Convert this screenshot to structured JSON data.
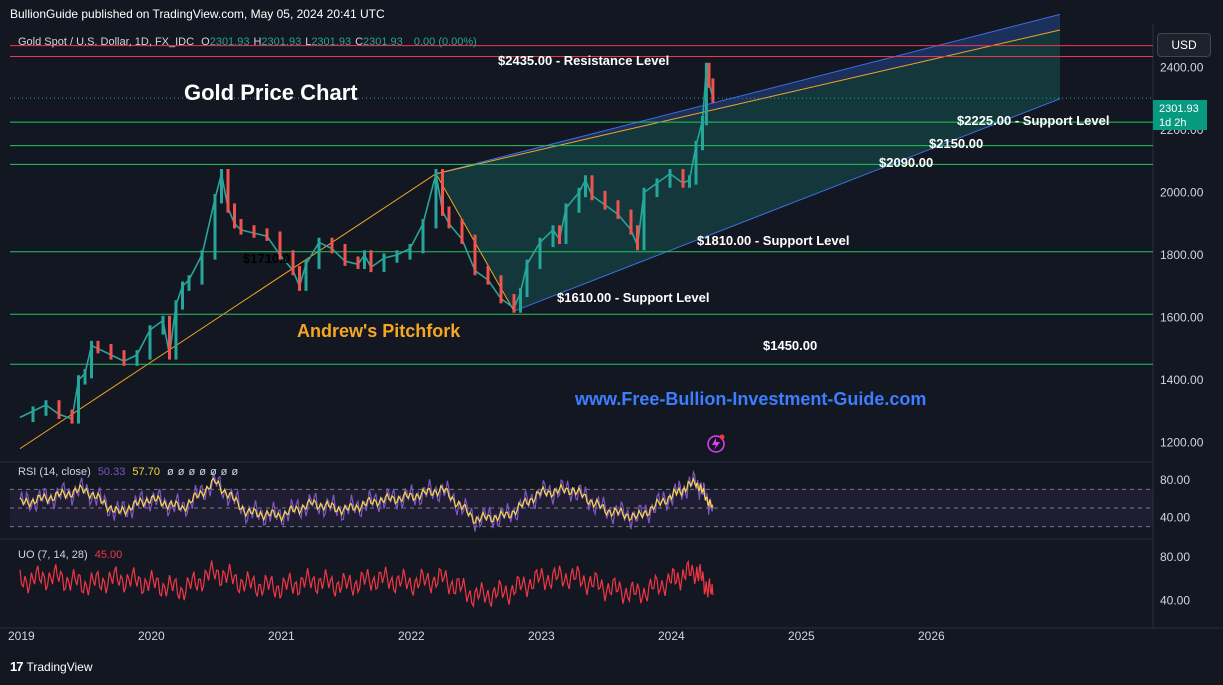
{
  "publisher": "BullionGuide published on TradingView.com, May 05, 2024 20:41 UTC",
  "header": {
    "symbol": "Gold Spot / U.S. Dollar, 1D, FX_IDC",
    "ohlc": [
      {
        "k": "O",
        "v": "2301.93"
      },
      {
        "k": "H",
        "v": "2301.93"
      },
      {
        "k": "L",
        "v": "2301.93"
      },
      {
        "k": "C",
        "v": "2301.93"
      }
    ],
    "change": "0.00 (0.00%)"
  },
  "currency_button": "USD",
  "price_badge": {
    "price": "2301.93",
    "countdown": "1d 2h"
  },
  "annotations": {
    "title": "Gold Price Chart",
    "pitchfork": "Andrew's Pitchfork",
    "website": "www.Free-Bullion-Investment-Guide.com",
    "partial_label": "$1710.0"
  },
  "levels": [
    {
      "price": 2435,
      "label": "$2435.00 - Resistance Level",
      "color": "#f23645"
    },
    {
      "price": 2470,
      "label": "",
      "color": "#f23645"
    },
    {
      "price": 2225,
      "label": "$2225.00 - Support Level",
      "color": "#22c55e"
    },
    {
      "price": 2150,
      "label": "$2150.00",
      "color": "#22c55e"
    },
    {
      "price": 2090,
      "label": "$2090.00",
      "color": "#22c55e"
    },
    {
      "price": 1810,
      "label": "$1810.00 - Support Level",
      "color": "#22c55e"
    },
    {
      "price": 1610,
      "label": "$1610.00 - Support Level",
      "color": "#22c55e"
    },
    {
      "price": 1450,
      "label": "$1450.00",
      "color": "#22c55e"
    }
  ],
  "rsi": {
    "label": "RSI (14, close)",
    "value": "50.33",
    "ma": "57.70",
    "extras": [
      "ø",
      "ø",
      "ø",
      "ø",
      "ø",
      "ø",
      "ø"
    ],
    "ticks": [
      "80.00",
      "40.00"
    ]
  },
  "uo": {
    "label": "UO (7, 14, 28)",
    "value": "45.00",
    "ticks": [
      "80.00",
      "40.00"
    ]
  },
  "footer_brand": "TradingView",
  "chart_data": {
    "type": "line",
    "title": "Gold Price Chart",
    "x_axis_labels": [
      "2019",
      "2020",
      "2021",
      "2022",
      "2023",
      "2024",
      "2025",
      "2026"
    ],
    "y_ticks": [
      1200,
      1400,
      1600,
      1800,
      2000,
      2200,
      2400
    ],
    "ylim": [
      1150,
      2520
    ],
    "xlim": [
      2019.0,
      2027.0
    ],
    "series": [
      {
        "x": [
          2019.0,
          2019.1,
          2019.2,
          2019.3,
          2019.4,
          2019.45,
          2019.5,
          2019.55,
          2019.6,
          2019.7,
          2019.8,
          2019.9,
          2020.0,
          2020.1,
          2020.15,
          2020.2,
          2020.25,
          2020.3,
          2020.4,
          2020.5,
          2020.55,
          2020.6,
          2020.65,
          2020.7,
          2020.8,
          2020.9,
          2021.0,
          2021.1,
          2021.15,
          2021.2,
          2021.3,
          2021.4,
          2021.5,
          2021.6,
          2021.65,
          2021.7,
          2021.8,
          2021.9,
          2022.0,
          2022.1,
          2022.2,
          2022.25,
          2022.3,
          2022.4,
          2022.5,
          2022.6,
          2022.7,
          2022.8,
          2022.85,
          2022.9,
          2023.0,
          2023.1,
          2023.15,
          2023.2,
          2023.3,
          2023.35,
          2023.4,
          2023.5,
          2023.6,
          2023.7,
          2023.75,
          2023.8,
          2023.9,
          2024.0,
          2024.1,
          2024.15,
          2024.2,
          2024.25,
          2024.28,
          2024.3,
          2024.33
        ],
        "y": [
          1280,
          1300,
          1320,
          1290,
          1275,
          1400,
          1420,
          1510,
          1500,
          1480,
          1460,
          1480,
          1560,
          1590,
          1480,
          1640,
          1700,
          1720,
          1800,
          1980,
          2060,
          1950,
          1900,
          1880,
          1870,
          1860,
          1800,
          1750,
          1700,
          1770,
          1840,
          1820,
          1780,
          1770,
          1800,
          1760,
          1790,
          1800,
          1820,
          1900,
          2060,
          1940,
          1900,
          1850,
          1750,
          1720,
          1660,
          1630,
          1680,
          1770,
          1840,
          1880,
          1850,
          1950,
          2000,
          2040,
          1990,
          1960,
          1930,
          1880,
          1830,
          2000,
          2030,
          2060,
          2030,
          2040,
          2150,
          2230,
          2400,
          2350,
          2301.93
        ]
      }
    ],
    "pitchfork": {
      "upper": [
        [
          2022.2,
          2060
        ],
        [
          2027.0,
          2570
        ]
      ],
      "median": [
        [
          2022.2,
          2060
        ],
        [
          2027.0,
          2520
        ]
      ],
      "lower": [
        [
          2022.8,
          1620
        ],
        [
          2027.0,
          2300
        ]
      ],
      "handle": [
        [
          2019.0,
          1180
        ],
        [
          2022.2,
          2060
        ]
      ]
    },
    "rsi_series": {
      "x": [
        2019.0,
        2019.25,
        2019.5,
        2019.75,
        2020.0,
        2020.25,
        2020.5,
        2020.75,
        2021.0,
        2021.25,
        2021.5,
        2021.75,
        2022.0,
        2022.25,
        2022.5,
        2022.75,
        2023.0,
        2023.25,
        2023.5,
        2023.75,
        2024.0,
        2024.2,
        2024.33
      ],
      "y": [
        55,
        62,
        70,
        45,
        60,
        50,
        78,
        45,
        42,
        55,
        48,
        58,
        62,
        70,
        38,
        42,
        66,
        70,
        48,
        40,
        62,
        78,
        50.33
      ]
    },
    "uo_series": {
      "x": [
        2019.0,
        2019.25,
        2019.5,
        2019.75,
        2020.0,
        2020.25,
        2020.5,
        2020.75,
        2021.0,
        2021.25,
        2021.5,
        2021.75,
        2022.0,
        2022.25,
        2022.5,
        2022.75,
        2023.0,
        2023.25,
        2023.5,
        2023.75,
        2024.0,
        2024.2,
        2024.33
      ],
      "y": [
        58,
        62,
        55,
        60,
        56,
        50,
        66,
        55,
        52,
        58,
        54,
        60,
        56,
        60,
        44,
        48,
        60,
        62,
        52,
        46,
        58,
        68,
        45
      ]
    }
  }
}
